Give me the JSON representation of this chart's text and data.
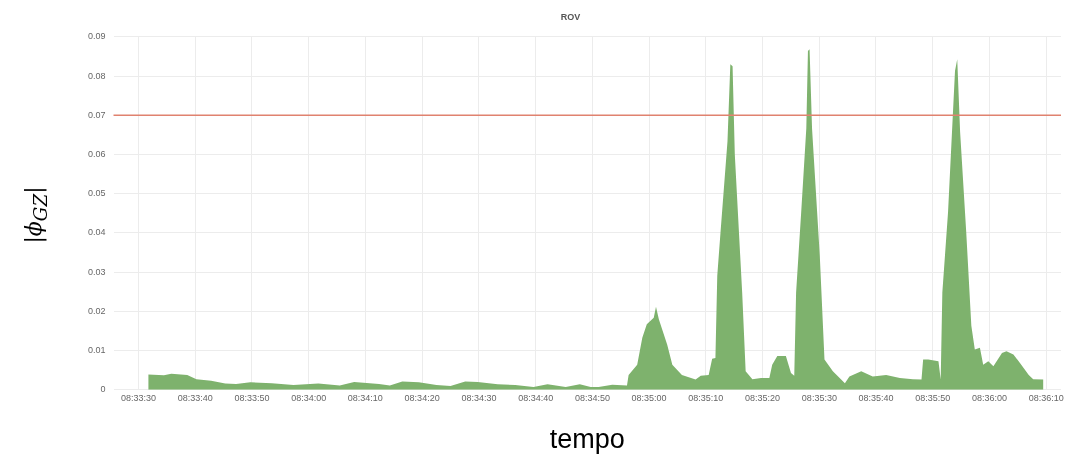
{
  "chart_data": {
    "type": "area",
    "title": "ROV",
    "xlabel": "tempo",
    "ylabel": "|ϕ$_{GZ}$|",
    "x": [
      8.55881,
      8.55958,
      8.55994,
      8.56072,
      8.56117,
      8.56189,
      8.56258,
      8.56311,
      8.56381,
      8.56486,
      8.56592,
      8.56714,
      8.56819,
      8.56889,
      8.57011,
      8.57064,
      8.57125,
      8.57206,
      8.57292,
      8.57361,
      8.57433,
      8.57494,
      8.57592,
      8.57678,
      8.57767,
      8.57836,
      8.57925,
      8.57994,
      8.58047,
      8.58086,
      8.58153,
      8.58225,
      8.58233,
      8.58275,
      8.583,
      8.58322,
      8.58356,
      8.58367,
      8.58381,
      8.58422,
      8.58447,
      8.58494,
      8.58561,
      8.58586,
      8.58625,
      8.58642,
      8.58658,
      8.58667,
      8.58683,
      8.58717,
      8.58731,
      8.58742,
      8.58753,
      8.58789,
      8.58806,
      8.58839,
      8.58881,
      8.58922,
      8.58936,
      8.58961,
      8.59003,
      8.59028,
      8.59044,
      8.59053,
      8.59078,
      8.59103,
      8.59111,
      8.59119,
      8.59131,
      8.59169,
      8.59192,
      8.59233,
      8.59292,
      8.59314,
      8.59372,
      8.59428,
      8.59494,
      8.59561,
      8.59625,
      8.59667,
      8.59675,
      8.597,
      8.5975,
      8.59761,
      8.59769,
      8.59797,
      8.59831,
      8.59842,
      8.59856,
      8.59886,
      8.59911,
      8.59928,
      8.59953,
      8.59969,
      8.59994,
      8.60019,
      8.60061,
      8.60083,
      8.60117,
      8.6015,
      8.60192,
      8.60214,
      8.60264
    ],
    "series": [
      {
        "color": "#7eb26d",
        "values": [
          0.0039,
          0.0037,
          0.0041,
          0.0038,
          0.0027,
          0.0023,
          0.0016,
          0.0015,
          0.0019,
          0.0017,
          0.0012,
          0.0016,
          0.0011,
          0.002,
          0.0015,
          0.0011,
          0.0021,
          0.0019,
          0.0012,
          0.001,
          0.0021,
          0.002,
          0.0014,
          0.0012,
          0.0007,
          0.0014,
          0.0007,
          0.0014,
          0.0007,
          0.0007,
          0.0013,
          0.0011,
          0.0038,
          0.0064,
          0.0133,
          0.0167,
          0.0184,
          0.0212,
          0.018,
          0.0115,
          0.0064,
          0.0038,
          0.0026,
          0.0036,
          0.0038,
          0.0079,
          0.0081,
          0.0291,
          0.0402,
          0.0633,
          0.083,
          0.0825,
          0.0599,
          0.0248,
          0.0047,
          0.0027,
          0.003,
          0.003,
          0.0064,
          0.0086,
          0.0086,
          0.0043,
          0.0036,
          0.0248,
          0.0453,
          0.0667,
          0.0864,
          0.0868,
          0.0667,
          0.0342,
          0.0077,
          0.0047,
          0.0017,
          0.0034,
          0.0047,
          0.0034,
          0.0038,
          0.003,
          0.0027,
          0.0026,
          0.0077,
          0.0077,
          0.0073,
          0.0026,
          0.0248,
          0.0453,
          0.0813,
          0.0843,
          0.0658,
          0.0402,
          0.0163,
          0.0103,
          0.0107,
          0.0064,
          0.0073,
          0.006,
          0.0094,
          0.0098,
          0.009,
          0.0068,
          0.0038,
          0.0027,
          0.0026
        ]
      }
    ],
    "xlim": [
      8.55711,
      8.6035
    ],
    "xticks": [
      {
        "value": 8.55833,
        "label": "08:33:30"
      },
      {
        "value": 8.56111,
        "label": "08:33:40"
      },
      {
        "value": 8.56389,
        "label": "08:33:50"
      },
      {
        "value": 8.56667,
        "label": "08:34:00"
      },
      {
        "value": 8.56944,
        "label": "08:34:10"
      },
      {
        "value": 8.57222,
        "label": "08:34:20"
      },
      {
        "value": 8.575,
        "label": "08:34:30"
      },
      {
        "value": 8.57778,
        "label": "08:34:40"
      },
      {
        "value": 8.58056,
        "label": "08:34:50"
      },
      {
        "value": 8.58333,
        "label": "08:35:00"
      },
      {
        "value": 8.58611,
        "label": "08:35:10"
      },
      {
        "value": 8.58889,
        "label": "08:35:20"
      },
      {
        "value": 8.59167,
        "label": "08:35:30"
      },
      {
        "value": 8.59444,
        "label": "08:35:40"
      },
      {
        "value": 8.59722,
        "label": "08:35:50"
      },
      {
        "value": 8.6,
        "label": "08:36:00"
      },
      {
        "value": 8.60278,
        "label": "08:36:10"
      }
    ],
    "ylim": [
      0,
      0.09
    ],
    "yticks": [
      0,
      0.01,
      0.02,
      0.03,
      0.04,
      0.05,
      0.06,
      0.07,
      0.08,
      0.09
    ],
    "ref_lines": [
      {
        "axis": "y",
        "value": 0.07,
        "color": "#e0826f"
      }
    ],
    "grid": true
  }
}
